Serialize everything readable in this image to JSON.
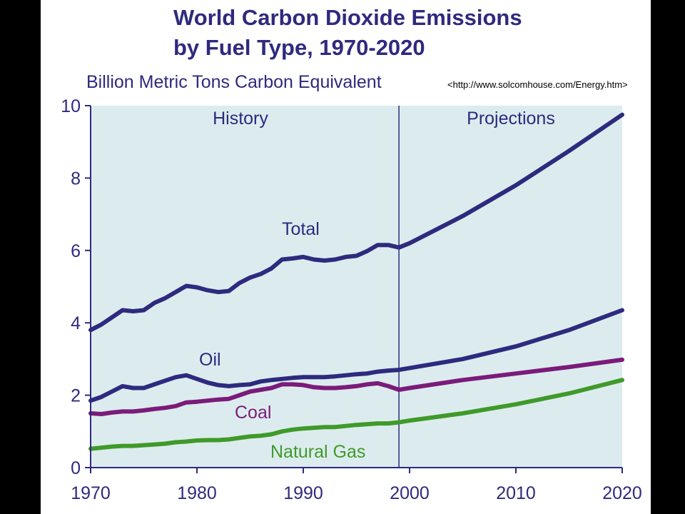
{
  "chart_data": {
    "type": "line",
    "title_lines": [
      "World Carbon Dioxide Emissions",
      "by Fuel Type, 1970-2020"
    ],
    "subtitle": "Billion Metric Tons Carbon Equivalent",
    "source": "<http://www.solcomhouse.com/Energy.htm>",
    "xlabel": "",
    "ylabel": "",
    "xlim": [
      1970,
      2020
    ],
    "ylim": [
      0,
      10
    ],
    "x_ticks": [
      1970,
      1980,
      1990,
      2000,
      2010,
      2020
    ],
    "y_ticks": [
      0,
      2,
      4,
      6,
      8,
      10
    ],
    "divider_x": 1999,
    "regions": [
      {
        "label": "History"
      },
      {
        "label": "Projections"
      }
    ],
    "grid": false,
    "legend": "none",
    "colors": {
      "plot_bg": "#dcecee",
      "axis": "#2e2a7e",
      "total": "#2e2a7e",
      "oil": "#2e2a7e",
      "coal": "#7b1b7a",
      "natural_gas": "#3f9a2a"
    },
    "series": [
      {
        "name": "Total",
        "key": "total",
        "points": [
          [
            1970,
            3.8
          ],
          [
            1971,
            3.95
          ],
          [
            1972,
            4.15
          ],
          [
            1973,
            4.35
          ],
          [
            1974,
            4.32
          ],
          [
            1975,
            4.35
          ],
          [
            1976,
            4.55
          ],
          [
            1977,
            4.68
          ],
          [
            1978,
            4.85
          ],
          [
            1979,
            5.02
          ],
          [
            1980,
            4.98
          ],
          [
            1981,
            4.9
          ],
          [
            1982,
            4.85
          ],
          [
            1983,
            4.88
          ],
          [
            1984,
            5.1
          ],
          [
            1985,
            5.25
          ],
          [
            1986,
            5.35
          ],
          [
            1987,
            5.5
          ],
          [
            1988,
            5.75
          ],
          [
            1989,
            5.78
          ],
          [
            1990,
            5.82
          ],
          [
            1991,
            5.75
          ],
          [
            1992,
            5.72
          ],
          [
            1993,
            5.75
          ],
          [
            1994,
            5.82
          ],
          [
            1995,
            5.85
          ],
          [
            1996,
            5.98
          ],
          [
            1997,
            6.15
          ],
          [
            1998,
            6.15
          ],
          [
            1999,
            6.08
          ],
          [
            2000,
            6.2
          ],
          [
            2005,
            6.95
          ],
          [
            2010,
            7.8
          ],
          [
            2015,
            8.75
          ],
          [
            2020,
            9.75
          ]
        ]
      },
      {
        "name": "Oil",
        "key": "oil",
        "points": [
          [
            1970,
            1.85
          ],
          [
            1971,
            1.95
          ],
          [
            1972,
            2.1
          ],
          [
            1973,
            2.25
          ],
          [
            1974,
            2.2
          ],
          [
            1975,
            2.2
          ],
          [
            1976,
            2.3
          ],
          [
            1977,
            2.4
          ],
          [
            1978,
            2.5
          ],
          [
            1979,
            2.55
          ],
          [
            1980,
            2.45
          ],
          [
            1981,
            2.35
          ],
          [
            1982,
            2.28
          ],
          [
            1983,
            2.25
          ],
          [
            1984,
            2.28
          ],
          [
            1985,
            2.3
          ],
          [
            1986,
            2.38
          ],
          [
            1987,
            2.42
          ],
          [
            1988,
            2.45
          ],
          [
            1989,
            2.48
          ],
          [
            1990,
            2.5
          ],
          [
            1991,
            2.5
          ],
          [
            1992,
            2.5
          ],
          [
            1993,
            2.52
          ],
          [
            1994,
            2.55
          ],
          [
            1995,
            2.58
          ],
          [
            1996,
            2.6
          ],
          [
            1997,
            2.65
          ],
          [
            1998,
            2.68
          ],
          [
            1999,
            2.7
          ],
          [
            2000,
            2.75
          ],
          [
            2005,
            3.0
          ],
          [
            2010,
            3.35
          ],
          [
            2015,
            3.8
          ],
          [
            2020,
            4.35
          ]
        ]
      },
      {
        "name": "Coal",
        "key": "coal",
        "points": [
          [
            1970,
            1.5
          ],
          [
            1971,
            1.48
          ],
          [
            1972,
            1.52
          ],
          [
            1973,
            1.55
          ],
          [
            1974,
            1.55
          ],
          [
            1975,
            1.58
          ],
          [
            1976,
            1.62
          ],
          [
            1977,
            1.65
          ],
          [
            1978,
            1.7
          ],
          [
            1979,
            1.8
          ],
          [
            1980,
            1.82
          ],
          [
            1981,
            1.85
          ],
          [
            1982,
            1.88
          ],
          [
            1983,
            1.9
          ],
          [
            1984,
            2.0
          ],
          [
            1985,
            2.1
          ],
          [
            1986,
            2.15
          ],
          [
            1987,
            2.2
          ],
          [
            1988,
            2.3
          ],
          [
            1989,
            2.3
          ],
          [
            1990,
            2.28
          ],
          [
            1991,
            2.22
          ],
          [
            1992,
            2.2
          ],
          [
            1993,
            2.2
          ],
          [
            1994,
            2.22
          ],
          [
            1995,
            2.25
          ],
          [
            1996,
            2.3
          ],
          [
            1997,
            2.33
          ],
          [
            1998,
            2.25
          ],
          [
            1999,
            2.15
          ],
          [
            2000,
            2.2
          ],
          [
            2005,
            2.42
          ],
          [
            2010,
            2.6
          ],
          [
            2015,
            2.78
          ],
          [
            2020,
            2.98
          ]
        ]
      },
      {
        "name": "Natural Gas",
        "key": "natural_gas",
        "points": [
          [
            1970,
            0.52
          ],
          [
            1971,
            0.55
          ],
          [
            1972,
            0.58
          ],
          [
            1973,
            0.6
          ],
          [
            1974,
            0.6
          ],
          [
            1975,
            0.62
          ],
          [
            1976,
            0.64
          ],
          [
            1977,
            0.66
          ],
          [
            1978,
            0.7
          ],
          [
            1979,
            0.72
          ],
          [
            1980,
            0.75
          ],
          [
            1981,
            0.76
          ],
          [
            1982,
            0.76
          ],
          [
            1983,
            0.78
          ],
          [
            1984,
            0.82
          ],
          [
            1985,
            0.86
          ],
          [
            1986,
            0.88
          ],
          [
            1987,
            0.92
          ],
          [
            1988,
            1.0
          ],
          [
            1989,
            1.05
          ],
          [
            1990,
            1.08
          ],
          [
            1991,
            1.1
          ],
          [
            1992,
            1.12
          ],
          [
            1993,
            1.12
          ],
          [
            1994,
            1.15
          ],
          [
            1995,
            1.18
          ],
          [
            1996,
            1.2
          ],
          [
            1997,
            1.22
          ],
          [
            1998,
            1.22
          ],
          [
            1999,
            1.25
          ],
          [
            2000,
            1.3
          ],
          [
            2005,
            1.5
          ],
          [
            2010,
            1.75
          ],
          [
            2015,
            2.05
          ],
          [
            2020,
            2.42
          ]
        ]
      }
    ]
  }
}
